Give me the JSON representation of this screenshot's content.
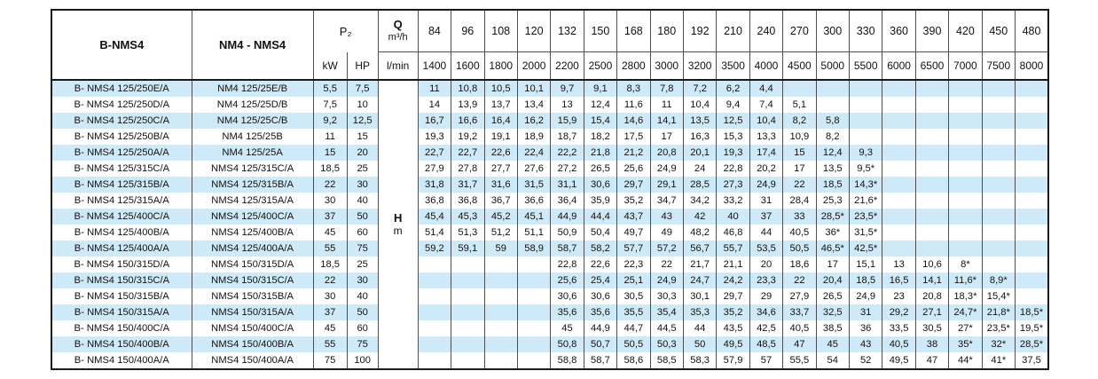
{
  "table": {
    "header": {
      "col1": "B-NMS4",
      "col2": "NM4 - NMS4",
      "p2": "P₂",
      "kw": "kW",
      "hp": "HP",
      "q_symbol": "Q",
      "q_unit": "m³/h",
      "lmin": "l/min",
      "flow_m3h": [
        "84",
        "96",
        "108",
        "120",
        "132",
        "150",
        "168",
        "180",
        "192",
        "210",
        "240",
        "270",
        "300",
        "330",
        "360",
        "390",
        "420",
        "450",
        "480"
      ],
      "flow_lmin": [
        "1400",
        "1600",
        "1800",
        "2000",
        "2200",
        "2500",
        "2800",
        "3000",
        "3200",
        "3500",
        "4000",
        "4500",
        "5000",
        "5500",
        "6000",
        "6500",
        "7000",
        "7500",
        "8000"
      ]
    },
    "head_unit_label": {
      "symbol": "H",
      "unit": "m"
    },
    "colors": {
      "stripe": "#cee9f7",
      "grid": "#4d4d4d",
      "outer": "#1a1a1a",
      "text": "#111111"
    },
    "rows": [
      {
        "b_nms4": "B- NMS4 125/250E/A",
        "nm4_nms4": "NM4 125/25E/B",
        "kw": "5,5",
        "hp": "7,5",
        "head_m": [
          "11",
          "10,8",
          "10,5",
          "10,1",
          "9,7",
          "9,1",
          "8,3",
          "7,8",
          "7,2",
          "6,2",
          "4,4",
          "",
          "",
          "",
          "",
          "",
          "",
          "",
          ""
        ]
      },
      {
        "b_nms4": "B- NMS4 125/250D/A",
        "nm4_nms4": "NM4 125/25D/B",
        "kw": "7,5",
        "hp": "10",
        "head_m": [
          "14",
          "13,9",
          "13,7",
          "13,4",
          "13",
          "12,4",
          "11,6",
          "11",
          "10,4",
          "9,4",
          "7,4",
          "5,1",
          "",
          "",
          "",
          "",
          "",
          "",
          ""
        ]
      },
      {
        "b_nms4": "B- NMS4 125/250C/A",
        "nm4_nms4": "NM4 125/25C/B",
        "kw": "9,2",
        "hp": "12,5",
        "head_m": [
          "16,7",
          "16,6",
          "16,4",
          "16,2",
          "15,9",
          "15,4",
          "14,6",
          "14,1",
          "13,5",
          "12,5",
          "10,4",
          "8,2",
          "5,8",
          "",
          "",
          "",
          "",
          "",
          ""
        ]
      },
      {
        "b_nms4": "B- NMS4 125/250B/A",
        "nm4_nms4": "NM4 125/25B",
        "kw": "11",
        "hp": "15",
        "head_m": [
          "19,3",
          "19,2",
          "19,1",
          "18,9",
          "18,7",
          "18,2",
          "17,5",
          "17",
          "16,3",
          "15,3",
          "13,3",
          "10,9",
          "8,2",
          "",
          "",
          "",
          "",
          "",
          ""
        ]
      },
      {
        "b_nms4": "B- NMS4 125/250A/A",
        "nm4_nms4": "NM4 125/25A",
        "kw": "15",
        "hp": "20",
        "head_m": [
          "22,7",
          "22,7",
          "22,6",
          "22,4",
          "22,2",
          "21,8",
          "21,2",
          "20,8",
          "20,1",
          "19,3",
          "17,4",
          "15",
          "12,4",
          "9,3",
          "",
          "",
          "",
          "",
          ""
        ]
      },
      {
        "b_nms4": "B- NMS4 125/315C/A",
        "nm4_nms4": "NMS4 125/315C/A",
        "kw": "18,5",
        "hp": "25",
        "head_m": [
          "27,9",
          "27,8",
          "27,7",
          "27,6",
          "27,2",
          "26,5",
          "25,6",
          "24,9",
          "24",
          "22,8",
          "20,2",
          "17",
          "13,5",
          "9,5*",
          "",
          "",
          "",
          "",
          ""
        ]
      },
      {
        "b_nms4": "B- NMS4 125/315B/A",
        "nm4_nms4": "NMS4 125/315B/A",
        "kw": "22",
        "hp": "30",
        "head_m": [
          "31,8",
          "31,7",
          "31,6",
          "31,5",
          "31,1",
          "30,6",
          "29,7",
          "29,1",
          "28,5",
          "27,3",
          "24,9",
          "22",
          "18,5",
          "14,3*",
          "",
          "",
          "",
          "",
          ""
        ]
      },
      {
        "b_nms4": "B- NMS4 125/315A/A",
        "nm4_nms4": "NMS4 125/315A/A",
        "kw": "30",
        "hp": "40",
        "head_m": [
          "36,8",
          "36,8",
          "36,7",
          "36,6",
          "36,4",
          "35,9",
          "35,2",
          "34,7",
          "34,2",
          "33,2",
          "31",
          "28,4",
          "25,3",
          "21,6*",
          "",
          "",
          "",
          "",
          ""
        ]
      },
      {
        "b_nms4": "B- NMS4 125/400C/A",
        "nm4_nms4": "NMS4 125/400C/A",
        "kw": "37",
        "hp": "50",
        "head_m": [
          "45,4",
          "45,3",
          "45,2",
          "45,1",
          "44,9",
          "44,4",
          "43,7",
          "43",
          "42",
          "40",
          "37",
          "33",
          "28,5*",
          "23,5*",
          "",
          "",
          "",
          "",
          ""
        ]
      },
      {
        "b_nms4": "B- NMS4 125/400B/A",
        "nm4_nms4": "NMS4 125/400B/A",
        "kw": "45",
        "hp": "60",
        "head_m": [
          "51,4",
          "51,3",
          "51,2",
          "51,1",
          "50,9",
          "50,4",
          "49,7",
          "49",
          "48,2",
          "46,8",
          "44",
          "40,5",
          "36*",
          "31,5*",
          "",
          "",
          "",
          "",
          ""
        ]
      },
      {
        "b_nms4": "B- NMS4 125/400A/A",
        "nm4_nms4": "NMS4 125/400A/A",
        "kw": "55",
        "hp": "75",
        "head_m": [
          "59,2",
          "59,1",
          "59",
          "58,9",
          "58,7",
          "58,2",
          "57,7",
          "57,2",
          "56,7",
          "55,7",
          "53,5",
          "50,5",
          "46,5*",
          "42,5*",
          "",
          "",
          "",
          "",
          ""
        ]
      },
      {
        "b_nms4": "B- NMS4 150/315D/A",
        "nm4_nms4": "NMS4 150/315D/A",
        "kw": "18,5",
        "hp": "25",
        "head_m": [
          "",
          "",
          "",
          "",
          "22,8",
          "22,6",
          "22,3",
          "22",
          "21,7",
          "21,1",
          "20",
          "18,6",
          "17",
          "15,1",
          "13",
          "10,6",
          "8*",
          "",
          ""
        ]
      },
      {
        "b_nms4": "B- NMS4 150/315C/A",
        "nm4_nms4": "NMS4 150/315C/A",
        "kw": "22",
        "hp": "30",
        "head_m": [
          "",
          "",
          "",
          "",
          "25,6",
          "25,4",
          "25,1",
          "24,9",
          "24,7",
          "24,2",
          "23,3",
          "22",
          "20,4",
          "18,5",
          "16,5",
          "14,1",
          "11,6*",
          "8,9*",
          ""
        ]
      },
      {
        "b_nms4": "B- NMS4 150/315B/A",
        "nm4_nms4": "NMS4 150/315B/A",
        "kw": "30",
        "hp": "40",
        "head_m": [
          "",
          "",
          "",
          "",
          "30,6",
          "30,6",
          "30,5",
          "30,3",
          "30,1",
          "29,7",
          "29",
          "27,9",
          "26,5",
          "24,9",
          "23",
          "20,8",
          "18,3*",
          "15,4*",
          ""
        ]
      },
      {
        "b_nms4": "B- NMS4 150/315A/A",
        "nm4_nms4": "NMS4 150/315A/A",
        "kw": "37",
        "hp": "50",
        "head_m": [
          "",
          "",
          "",
          "",
          "35,6",
          "35,6",
          "35,5",
          "35,4",
          "35,3",
          "35,2",
          "34,6",
          "33,7",
          "32,5",
          "31",
          "29,2",
          "27,1",
          "24,7*",
          "21,8*",
          "18,5*"
        ]
      },
      {
        "b_nms4": "B- NMS4 150/400C/A",
        "nm4_nms4": "NMS4 150/400C/A",
        "kw": "45",
        "hp": "60",
        "head_m": [
          "",
          "",
          "",
          "",
          "45",
          "44,9",
          "44,7",
          "44,5",
          "44",
          "43,5",
          "42,5",
          "40,5",
          "38,5",
          "36",
          "33,5",
          "30,5",
          "27*",
          "23,5*",
          "19,5*"
        ]
      },
      {
        "b_nms4": "B- NMS4 150/400B/A",
        "nm4_nms4": "NMS4 150/400B/A",
        "kw": "55",
        "hp": "75",
        "head_m": [
          "",
          "",
          "",
          "",
          "50,8",
          "50,7",
          "50,5",
          "50,3",
          "50",
          "49,5",
          "48,5",
          "47",
          "45",
          "43",
          "40,5",
          "38",
          "35*",
          "32*",
          "28,5*"
        ]
      },
      {
        "b_nms4": "B- NMS4 150/400A/A",
        "nm4_nms4": "NMS4 150/400A/A",
        "kw": "75",
        "hp": "100",
        "head_m": [
          "",
          "",
          "",
          "",
          "58,8",
          "58,7",
          "58,6",
          "58,5",
          "58,3",
          "57,9",
          "57",
          "55,5",
          "54",
          "52",
          "49,5",
          "47",
          "44*",
          "41*",
          "37,5"
        ]
      }
    ]
  }
}
